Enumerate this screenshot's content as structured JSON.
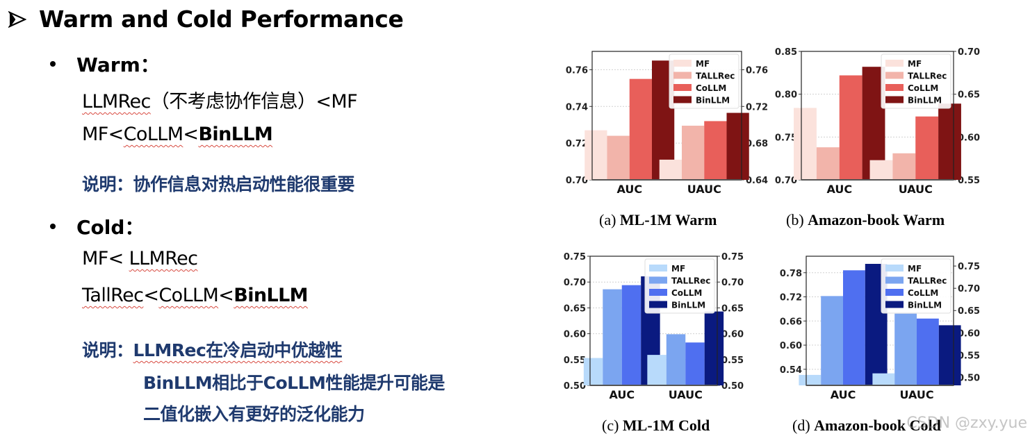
{
  "slide": {
    "title": "Warm and Cold Performance",
    "warm": {
      "label": "Warm：",
      "line1": {
        "a": "LLMRec",
        "b": "（不考虑协作信息）<MF"
      },
      "line2": {
        "a": "MF<",
        "b": "CoLLM",
        "c": "<",
        "d": "BinLLM"
      },
      "note": "说明：协作信息对热启动性能很重要"
    },
    "cold": {
      "label": "Cold：",
      "line1": {
        "a": "MF< ",
        "b": "LLMRec"
      },
      "line2": {
        "a": "TallRec",
        "b": "<",
        "c": "CoLLM",
        "d": "<",
        "e": "BinLLM"
      },
      "note_prefix": "说明：",
      "note_l1": "LLMRec在冷启动中优越性",
      "note_l2": "BinLLM相比于CoLLM性能提升可能是",
      "note_l3": "二值化嵌入有更好的泛化能力"
    }
  },
  "watermark": "CSDN @zxy.yue",
  "chart_data": [
    {
      "id": "a",
      "type": "bar",
      "title": "(a) ML-1M Warm",
      "caption_prefix": "(a)",
      "caption_bold": "ML-1M Warm",
      "categories": [
        "AUC",
        "UAUC"
      ],
      "left_axis": {
        "metric": "AUC",
        "ylim": [
          0.7,
          0.77
        ],
        "ticks": [
          "0.70",
          "0.72",
          "0.74",
          "0.76"
        ]
      },
      "right_axis": {
        "metric": "UAUC",
        "ylim": [
          0.64,
          0.78
        ],
        "ticks": [
          "0.64",
          "0.68",
          "0.72",
          "0.76"
        ]
      },
      "series": [
        {
          "name": "MF",
          "color": "#fbe2dc",
          "values": [
            0.727,
            0.662
          ]
        },
        {
          "name": "TALLRec",
          "color": "#f2b4aa",
          "values": [
            0.724,
            0.699
          ]
        },
        {
          "name": "CoLLM",
          "color": "#e85f5a",
          "values": [
            0.755,
            0.704
          ]
        },
        {
          "name": "BinLLM",
          "color": "#7f1414",
          "values": [
            0.765,
            0.713
          ]
        }
      ],
      "grid": true,
      "legend_position": "upper right"
    },
    {
      "id": "b",
      "type": "bar",
      "title": "(b) Amazon-book Warm",
      "caption_prefix": "(b)",
      "caption_bold": "Amazon-book Warm",
      "categories": [
        "AUC",
        "UAUC"
      ],
      "left_axis": {
        "metric": "AUC",
        "ylim": [
          0.7,
          0.85
        ],
        "ticks": [
          "0.70",
          "0.75",
          "0.80",
          "0.85"
        ]
      },
      "right_axis": {
        "metric": "UAUC",
        "ylim": [
          0.55,
          0.7
        ],
        "ticks": [
          "0.55",
          "0.60",
          "0.65",
          "0.70"
        ]
      },
      "series": [
        {
          "name": "MF",
          "color": "#fbe2dc",
          "values": [
            0.784,
            0.573
          ]
        },
        {
          "name": "TALLRec",
          "color": "#f2b4aa",
          "values": [
            0.738,
            0.581
          ]
        },
        {
          "name": "CoLLM",
          "color": "#e85f5a",
          "values": [
            0.822,
            0.624
          ]
        },
        {
          "name": "BinLLM",
          "color": "#7f1414",
          "values": [
            0.832,
            0.639
          ]
        }
      ],
      "grid": true,
      "legend_position": "upper right"
    },
    {
      "id": "c",
      "type": "bar",
      "title": "(c) ML-1M Cold",
      "caption_prefix": "(c)",
      "caption_bold": "ML-1M Cold",
      "categories": [
        "AUC",
        "UAUC"
      ],
      "left_axis": {
        "metric": "AUC",
        "ylim": [
          0.5,
          0.75
        ],
        "ticks": [
          "0.50",
          "0.55",
          "0.60",
          "0.65",
          "0.70",
          "0.75"
        ]
      },
      "right_axis": {
        "metric": "UAUC",
        "ylim": [
          0.5,
          0.75
        ],
        "ticks": [
          "0.50",
          "0.55",
          "0.60",
          "0.65",
          "0.70",
          "0.75"
        ]
      },
      "series": [
        {
          "name": "MF",
          "color": "#b8dafb",
          "values": [
            0.553,
            0.559
          ]
        },
        {
          "name": "TALLRec",
          "color": "#7ba5f0",
          "values": [
            0.686,
            0.599
          ]
        },
        {
          "name": "CoLLM",
          "color": "#4f6ff0",
          "values": [
            0.694,
            0.583
          ]
        },
        {
          "name": "BinLLM",
          "color": "#0a1a80",
          "values": [
            0.711,
            0.643
          ]
        }
      ],
      "grid": true,
      "legend_position": "upper right"
    },
    {
      "id": "d",
      "type": "bar",
      "title": "(d) Amazon-book Cold",
      "caption_prefix": "(d)",
      "caption_bold": "Amazon-book Cold",
      "categories": [
        "AUC",
        "UAUC"
      ],
      "left_axis": {
        "metric": "AUC",
        "ylim": [
          0.5,
          0.821
        ],
        "ticks": [
          "0.54",
          "0.60",
          "0.66",
          "0.72",
          "0.78"
        ]
      },
      "right_axis": {
        "metric": "UAUC",
        "ylim": [
          0.482,
          0.772
        ],
        "ticks": [
          "0.50",
          "0.55",
          "0.60",
          "0.65",
          "0.70",
          "0.75"
        ]
      },
      "series": [
        {
          "name": "MF",
          "color": "#b8dafb",
          "values": [
            0.526,
            0.509
          ]
        },
        {
          "name": "TALLRec",
          "color": "#7ba5f0",
          "values": [
            0.722,
            0.643
          ]
        },
        {
          "name": "CoLLM",
          "color": "#4f6ff0",
          "values": [
            0.786,
            0.632
          ]
        },
        {
          "name": "BinLLM",
          "color": "#0a1a80",
          "values": [
            0.802,
            0.617
          ]
        }
      ],
      "grid": true,
      "legend_position": "upper right"
    }
  ]
}
